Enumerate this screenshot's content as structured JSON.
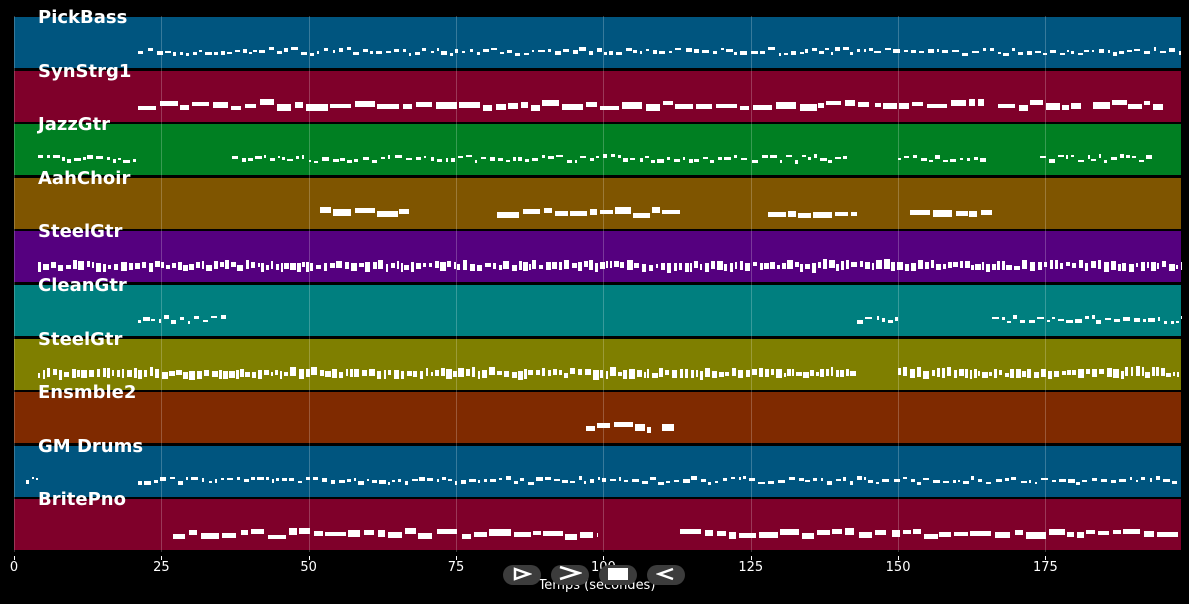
{
  "tracks": [
    {
      "name": "PickBass",
      "color": "#00557f",
      "style": "fine",
      "segments": [
        [
          21,
          198
        ]
      ]
    },
    {
      "name": "SynStrg1",
      "color": "#7f002a",
      "style": "thick",
      "segments": [
        [
          21,
          145
        ],
        [
          146,
          165
        ],
        [
          167,
          181
        ],
        [
          183,
          195
        ]
      ]
    },
    {
      "name": "JazzGtr",
      "color": "#007f22",
      "style": "fine",
      "segments": [
        [
          4,
          21
        ],
        [
          37,
          142
        ],
        [
          150,
          165
        ],
        [
          174,
          193
        ]
      ]
    },
    {
      "name": "AahChoir",
      "color": "#7f5500",
      "style": "thick",
      "segments": [
        [
          52,
          67
        ],
        [
          82,
          113
        ],
        [
          128,
          143
        ],
        [
          152,
          166
        ]
      ]
    },
    {
      "name": "SteelGtr",
      "color": "#55007f",
      "style": "dense",
      "segments": [
        [
          4,
          198
        ]
      ]
    },
    {
      "name": "CleanGtr",
      "color": "#007f7f",
      "style": "fine",
      "segments": [
        [
          21,
          36
        ],
        [
          143,
          150
        ],
        [
          166,
          198
        ]
      ]
    },
    {
      "name": "SteelGtr",
      "color": "#7f7f00",
      "style": "dense",
      "segments": [
        [
          4,
          143
        ],
        [
          150,
          198
        ]
      ]
    },
    {
      "name": "Ensmble2",
      "color": "#7f2a00",
      "style": "thick",
      "segments": [
        [
          97,
          108
        ],
        [
          110,
          112
        ]
      ]
    },
    {
      "name": "GM Drums",
      "color": "#00557f",
      "style": "fine",
      "segments": [
        [
          2,
          4
        ],
        [
          21,
          198
        ]
      ]
    },
    {
      "name": "BritePno",
      "color": "#7f002a",
      "style": "thick",
      "segments": [
        [
          27,
          99
        ],
        [
          113,
          148
        ],
        [
          149,
          198
        ]
      ]
    }
  ],
  "x_axis": {
    "label": "Temps (secondes)",
    "ticks": [
      "0",
      "25",
      "50",
      "75",
      "100",
      "125",
      "150",
      "175"
    ],
    "tick_values": [
      0,
      25,
      50,
      75,
      100,
      125,
      150,
      175
    ],
    "range": [
      0,
      198
    ]
  },
  "controls": [
    {
      "name": "rewind-button",
      "icon": "play-outline-icon"
    },
    {
      "name": "play-button",
      "icon": "chevron-right-icon"
    },
    {
      "name": "stop-button",
      "icon": "stop-icon"
    },
    {
      "name": "back-button",
      "icon": "play-left-outline-icon"
    }
  ]
}
